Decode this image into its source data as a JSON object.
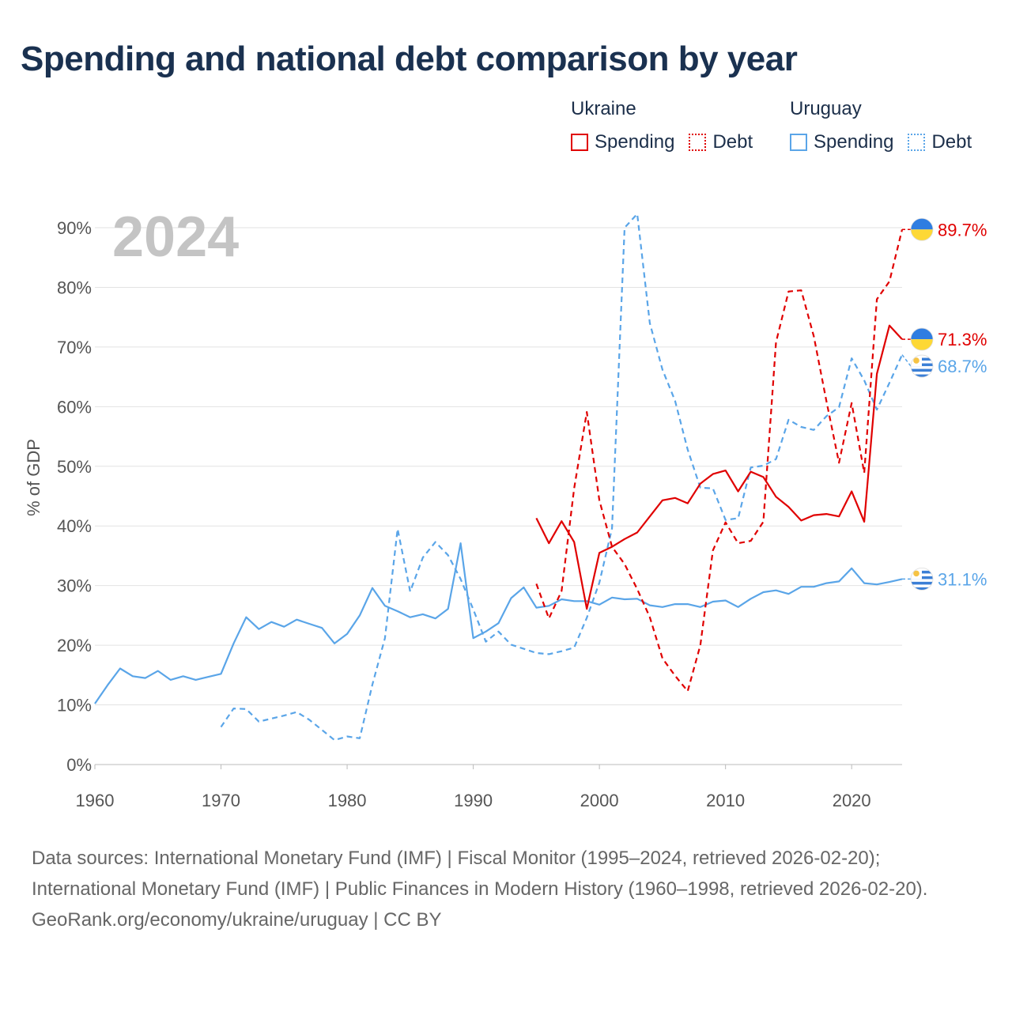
{
  "title": "Spending and national debt comparison by year",
  "legend": {
    "groups": [
      {
        "country": "Ukraine",
        "color": "#e00000",
        "spending_label": "Spending",
        "debt_label": "Debt"
      },
      {
        "country": "Uruguay",
        "color": "#5aa5e8",
        "spending_label": "Spending",
        "debt_label": "Debt"
      }
    ]
  },
  "year_label": "2024",
  "footer": {
    "sources": "Data sources: International Monetary Fund (IMF) | Fiscal Monitor (1995–2024, retrieved 2026-02-20); International Monetary Fund (IMF) | Public Finances in Modern History (1960–1998, retrieved 2026-02-20).",
    "credit": "GeoRank.org/economy/ukraine/uruguay | CC BY"
  },
  "chart_data": {
    "type": "line",
    "title": "Spending and national debt comparison by year",
    "xlabel": "",
    "ylabel": "% of GDP",
    "xlim": [
      1960,
      2024
    ],
    "ylim": [
      0,
      90
    ],
    "x_ticks": [
      1960,
      1970,
      1980,
      1990,
      2000,
      2010,
      2020
    ],
    "x_tick_labels": [
      "1960",
      "1970",
      "1980",
      "1990",
      "2000",
      "2010",
      "2020"
    ],
    "y_ticks": [
      0,
      10,
      20,
      30,
      40,
      50,
      60,
      70,
      80,
      90
    ],
    "y_tick_labels": [
      "0%",
      "10%",
      "20%",
      "30%",
      "40%",
      "50%",
      "60%",
      "70%",
      "80%",
      "90%"
    ],
    "grid": true,
    "series": [
      {
        "name": "Ukraine Spending",
        "country": "Ukraine",
        "kind": "spending",
        "color": "#e00000",
        "dashed": false,
        "end_label": "71.3%",
        "points": [
          [
            1995,
            41.3
          ],
          [
            1996,
            37.1
          ],
          [
            1997,
            40.8
          ],
          [
            1998,
            37.3
          ],
          [
            1999,
            26.1
          ],
          [
            2000,
            35.5
          ],
          [
            2001,
            36.5
          ],
          [
            2002,
            37.8
          ],
          [
            2003,
            38.9
          ],
          [
            2004,
            41.6
          ],
          [
            2005,
            44.3
          ],
          [
            2006,
            44.7
          ],
          [
            2007,
            43.8
          ],
          [
            2008,
            47.1
          ],
          [
            2009,
            48.7
          ],
          [
            2010,
            49.3
          ],
          [
            2011,
            45.8
          ],
          [
            2012,
            49.1
          ],
          [
            2013,
            48.2
          ],
          [
            2014,
            44.9
          ],
          [
            2015,
            43.2
          ],
          [
            2016,
            40.9
          ],
          [
            2017,
            41.8
          ],
          [
            2018,
            42.0
          ],
          [
            2019,
            41.6
          ],
          [
            2020,
            45.8
          ],
          [
            2021,
            40.7
          ],
          [
            2022,
            65.5
          ],
          [
            2023,
            73.6
          ],
          [
            2024,
            71.3
          ]
        ]
      },
      {
        "name": "Ukraine Debt",
        "country": "Ukraine",
        "kind": "debt",
        "color": "#e00000",
        "dashed": true,
        "end_label": "89.7%",
        "points": [
          [
            1995,
            30.3
          ],
          [
            1996,
            24.5
          ],
          [
            1997,
            29.1
          ],
          [
            1998,
            46.3
          ],
          [
            1999,
            59.1
          ],
          [
            2000,
            44.3
          ],
          [
            2001,
            36.5
          ],
          [
            2002,
            33.6
          ],
          [
            2003,
            29.4
          ],
          [
            2004,
            24.7
          ],
          [
            2005,
            17.8
          ],
          [
            2006,
            14.9
          ],
          [
            2007,
            12.3
          ],
          [
            2008,
            20.0
          ],
          [
            2009,
            35.9
          ],
          [
            2010,
            40.6
          ],
          [
            2011,
            37.1
          ],
          [
            2012,
            37.5
          ],
          [
            2013,
            40.7
          ],
          [
            2014,
            70.8
          ],
          [
            2015,
            79.3
          ],
          [
            2016,
            79.5
          ],
          [
            2017,
            71.8
          ],
          [
            2018,
            60.9
          ],
          [
            2019,
            50.6
          ],
          [
            2020,
            60.6
          ],
          [
            2021,
            48.9
          ],
          [
            2022,
            78.0
          ],
          [
            2023,
            81.0
          ],
          [
            2024,
            89.7
          ]
        ]
      },
      {
        "name": "Uruguay Spending",
        "country": "Uruguay",
        "kind": "spending",
        "color": "#5aa5e8",
        "dashed": false,
        "end_label": "31.1%",
        "points": [
          [
            1960,
            10.2
          ],
          [
            1961,
            13.3
          ],
          [
            1962,
            16.1
          ],
          [
            1963,
            14.8
          ],
          [
            1964,
            14.5
          ],
          [
            1965,
            15.7
          ],
          [
            1966,
            14.2
          ],
          [
            1967,
            14.8
          ],
          [
            1968,
            14.2
          ],
          [
            1969,
            14.7
          ],
          [
            1970,
            15.2
          ],
          [
            1971,
            20.3
          ],
          [
            1972,
            24.7
          ],
          [
            1973,
            22.7
          ],
          [
            1974,
            23.9
          ],
          [
            1975,
            23.1
          ],
          [
            1976,
            24.3
          ],
          [
            1977,
            23.6
          ],
          [
            1978,
            22.9
          ],
          [
            1979,
            20.3
          ],
          [
            1980,
            21.9
          ],
          [
            1981,
            25.0
          ],
          [
            1982,
            29.6
          ],
          [
            1983,
            26.6
          ],
          [
            1984,
            25.7
          ],
          [
            1985,
            24.7
          ],
          [
            1986,
            25.2
          ],
          [
            1987,
            24.5
          ],
          [
            1988,
            26.1
          ],
          [
            1989,
            37.1
          ],
          [
            1990,
            21.2
          ],
          [
            1991,
            22.3
          ],
          [
            1992,
            23.7
          ],
          [
            1993,
            27.9
          ],
          [
            1994,
            29.7
          ],
          [
            1995,
            26.3
          ],
          [
            1996,
            26.6
          ],
          [
            1997,
            27.7
          ],
          [
            1998,
            27.4
          ],
          [
            1999,
            27.4
          ],
          [
            2000,
            26.8
          ],
          [
            2001,
            28.0
          ],
          [
            2002,
            27.7
          ],
          [
            2003,
            27.8
          ],
          [
            2004,
            26.7
          ],
          [
            2005,
            26.4
          ],
          [
            2006,
            26.9
          ],
          [
            2007,
            26.9
          ],
          [
            2008,
            26.4
          ],
          [
            2009,
            27.3
          ],
          [
            2010,
            27.5
          ],
          [
            2011,
            26.4
          ],
          [
            2012,
            27.8
          ],
          [
            2013,
            28.9
          ],
          [
            2014,
            29.2
          ],
          [
            2015,
            28.6
          ],
          [
            2016,
            29.8
          ],
          [
            2017,
            29.8
          ],
          [
            2018,
            30.4
          ],
          [
            2019,
            30.7
          ],
          [
            2020,
            32.9
          ],
          [
            2021,
            30.4
          ],
          [
            2022,
            30.2
          ],
          [
            2023,
            30.6
          ],
          [
            2024,
            31.1
          ]
        ]
      },
      {
        "name": "Uruguay Debt",
        "country": "Uruguay",
        "kind": "debt",
        "color": "#5aa5e8",
        "dashed": true,
        "end_label": "68.7%",
        "points": [
          [
            1970,
            6.3
          ],
          [
            1971,
            9.4
          ],
          [
            1972,
            9.3
          ],
          [
            1973,
            7.2
          ],
          [
            1974,
            7.7
          ],
          [
            1975,
            8.2
          ],
          [
            1976,
            8.8
          ],
          [
            1977,
            7.5
          ],
          [
            1978,
            5.8
          ],
          [
            1979,
            4.1
          ],
          [
            1980,
            4.7
          ],
          [
            1981,
            4.4
          ],
          [
            1982,
            13.4
          ],
          [
            1983,
            21.2
          ],
          [
            1984,
            39.5
          ],
          [
            1985,
            29.0
          ],
          [
            1986,
            34.7
          ],
          [
            1987,
            37.3
          ],
          [
            1988,
            35.1
          ],
          [
            1989,
            31.1
          ],
          [
            1990,
            26.0
          ],
          [
            1991,
            20.6
          ],
          [
            1992,
            22.3
          ],
          [
            1993,
            20.1
          ],
          [
            1994,
            19.4
          ],
          [
            1995,
            18.7
          ],
          [
            1996,
            18.5
          ],
          [
            1997,
            19.0
          ],
          [
            1998,
            19.6
          ],
          [
            1999,
            24.6
          ],
          [
            2000,
            30.5
          ],
          [
            2001,
            39.6
          ],
          [
            2002,
            90.0
          ],
          [
            2003,
            92.3
          ],
          [
            2004,
            74.0
          ],
          [
            2005,
            66.2
          ],
          [
            2006,
            61.0
          ],
          [
            2007,
            52.8
          ],
          [
            2008,
            46.4
          ],
          [
            2009,
            46.3
          ],
          [
            2010,
            41.0
          ],
          [
            2011,
            41.3
          ],
          [
            2012,
            49.8
          ],
          [
            2013,
            50.1
          ],
          [
            2014,
            51.2
          ],
          [
            2015,
            57.8
          ],
          [
            2016,
            56.6
          ],
          [
            2017,
            56.1
          ],
          [
            2018,
            58.4
          ],
          [
            2019,
            59.9
          ],
          [
            2020,
            68.1
          ],
          [
            2021,
            64.4
          ],
          [
            2022,
            59.5
          ],
          [
            2023,
            64.0
          ],
          [
            2024,
            68.7
          ]
        ]
      }
    ]
  }
}
